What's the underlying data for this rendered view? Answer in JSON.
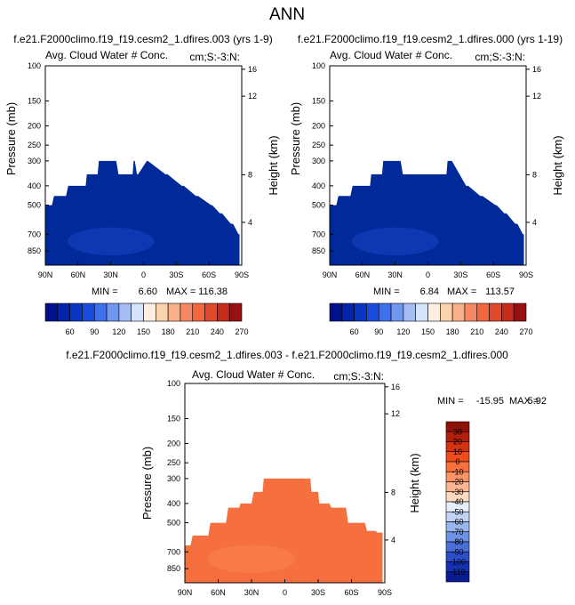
{
  "page_title": "ANN",
  "colors": {
    "field_blue": "#002a9a",
    "field_orange": "#f6703f",
    "field_orange_light": "#f9854e",
    "field_blue_light": "#1543c6"
  },
  "top_colorbar": {
    "colors": [
      "#00128a",
      "#0423a6",
      "#0a35c3",
      "#1b4ddc",
      "#3f71ea",
      "#6f96f0",
      "#a4bdf5",
      "#d6e3fa",
      "#fdf0e2",
      "#fcd2b0",
      "#f9b08a",
      "#f68963",
      "#f16a3f",
      "#e2482b",
      "#c52b1b",
      "#9a0f0f"
    ],
    "labels": [
      "60",
      "90",
      "120",
      "150",
      "180",
      "210",
      "240",
      "270"
    ]
  },
  "diff_colorbar": {
    "colors": [
      "#8e1208",
      "#b0200d",
      "#d53312",
      "#ee4d1d",
      "#f8703e",
      "#fa9465",
      "#fcb691",
      "#fed8bf",
      "#e4eefb",
      "#bfd3f4",
      "#98b5ec",
      "#6d92e4",
      "#4a6fd9",
      "#2a4fc9",
      "#1431b2",
      "#0b1b94"
    ],
    "labels": [
      "30",
      "20",
      "10",
      "0",
      "-10",
      "-20",
      "-30",
      "-40",
      "-50",
      "-60",
      "-70",
      "-80",
      "-90",
      "-100",
      "-110"
    ]
  },
  "chart_data": [
    {
      "type": "heatmap",
      "title": "f.e21.F2000climo.f19_f19.cesm2_1.dfires.003 (yrs 1-9)",
      "subtitle_left": "Avg. Cloud Water # Conc.",
      "subtitle_right": "cm;S:-3:N:",
      "ylabel": "Pressure (mb)",
      "ylabel_right": "Height (km)",
      "x_ticks": [
        "90N",
        "60N",
        "30N",
        "0",
        "30S",
        "60S",
        "90S"
      ],
      "y_ticks": [
        "100",
        "150",
        "200",
        "250",
        "300",
        "400",
        "500",
        "700",
        "850"
      ],
      "height_ticks": [
        "16",
        "12",
        "8",
        "4"
      ],
      "stats": {
        "min_label": "MIN =",
        "min": "6.60",
        "max_label": "MAX =",
        "max": "116.38"
      },
      "ylim": [
        1000,
        100
      ],
      "xlim": [
        90,
        -90
      ],
      "cloud_top_profile": {
        "lat": [
          90,
          84,
          82,
          71,
          69,
          53,
          52,
          42,
          41,
          25,
          23,
          10,
          9,
          8,
          6,
          5,
          -3,
          -4,
          -20,
          -22,
          -35,
          -37,
          -48,
          -50,
          -62,
          -63,
          -70,
          -72,
          -80,
          -82,
          -87,
          -88
        ],
        "pressure_mb": [
          500,
          500,
          450,
          450,
          400,
          400,
          350,
          350,
          300,
          300,
          350,
          350,
          300,
          300,
          350,
          350,
          300,
          300,
          350,
          350,
          400,
          400,
          450,
          450,
          500,
          500,
          550,
          550,
          620,
          620,
          700,
          700
        ]
      }
    },
    {
      "type": "heatmap",
      "title": "f.e21.F2000climo.f19_f19.cesm2_1.dfires.000 (yrs 1-19)",
      "subtitle_left": "Avg. Cloud Water # Conc.",
      "subtitle_right": "cm;S:-3:N:",
      "ylabel": "Pressure (mb)",
      "ylabel_right": "Height (km)",
      "x_ticks": [
        "90N",
        "60N",
        "30N",
        "0",
        "30S",
        "60S",
        "90S"
      ],
      "y_ticks": [
        "100",
        "150",
        "200",
        "250",
        "300",
        "400",
        "500",
        "700",
        "850"
      ],
      "height_ticks": [
        "16",
        "12",
        "8",
        "4"
      ],
      "stats": {
        "min_label": "MIN =",
        "min": "6.84",
        "max_label": "MAX =",
        "max": "113.57"
      },
      "ylim": [
        1000,
        100
      ],
      "xlim": [
        90,
        -90
      ],
      "cloud_top_profile": {
        "lat": [
          90,
          84,
          82,
          71,
          69,
          53,
          52,
          42,
          41,
          25,
          23,
          -17,
          -18,
          -22,
          -35,
          -37,
          -48,
          -50,
          -62,
          -63,
          -70,
          -72,
          -80,
          -82,
          -87,
          -88
        ],
        "pressure_mb": [
          500,
          500,
          450,
          450,
          400,
          400,
          350,
          350,
          300,
          300,
          350,
          350,
          300,
          300,
          400,
          400,
          450,
          450,
          500,
          500,
          550,
          550,
          620,
          620,
          700,
          700
        ]
      }
    },
    {
      "type": "heatmap",
      "title": "f.e21.F2000climo.f19_f19.cesm2_1.dfires.003 - f.e21.F2000climo.f19_f19.cesm2_1.dfires.000",
      "subtitle_left": "Avg. Cloud Water # Conc.",
      "subtitle_right": "cm;S:-3:N:",
      "ylabel": "Pressure (mb)",
      "ylabel_right": "Height (km)",
      "x_ticks": [
        "90N",
        "60N",
        "30N",
        "0",
        "30S",
        "60S",
        "90S"
      ],
      "y_ticks": [
        "100",
        "150",
        "200",
        "250",
        "300",
        "400",
        "500",
        "700",
        "850"
      ],
      "height_ticks": [
        "16",
        "12",
        "8",
        "4"
      ],
      "stats": {
        "min_label": "MIN =",
        "min": "-15.95",
        "max_label": "MAX =",
        "max": "5.92"
      },
      "ylim": [
        1000,
        100
      ],
      "xlim": [
        90,
        -90
      ],
      "cloud_top_profile": {
        "lat": [
          90,
          85,
          83,
          69,
          67,
          53,
          51,
          41,
          40,
          30,
          28,
          20,
          19,
          -23,
          -24,
          -30,
          -31,
          -40,
          -42,
          -55,
          -57,
          -72,
          -74,
          -82,
          -83,
          -88
        ],
        "pressure_mb": [
          650,
          650,
          580,
          580,
          500,
          500,
          420,
          420,
          400,
          400,
          350,
          350,
          300,
          300,
          350,
          350,
          400,
          400,
          420,
          420,
          500,
          500,
          550,
          550,
          560,
          560
        ]
      }
    }
  ]
}
